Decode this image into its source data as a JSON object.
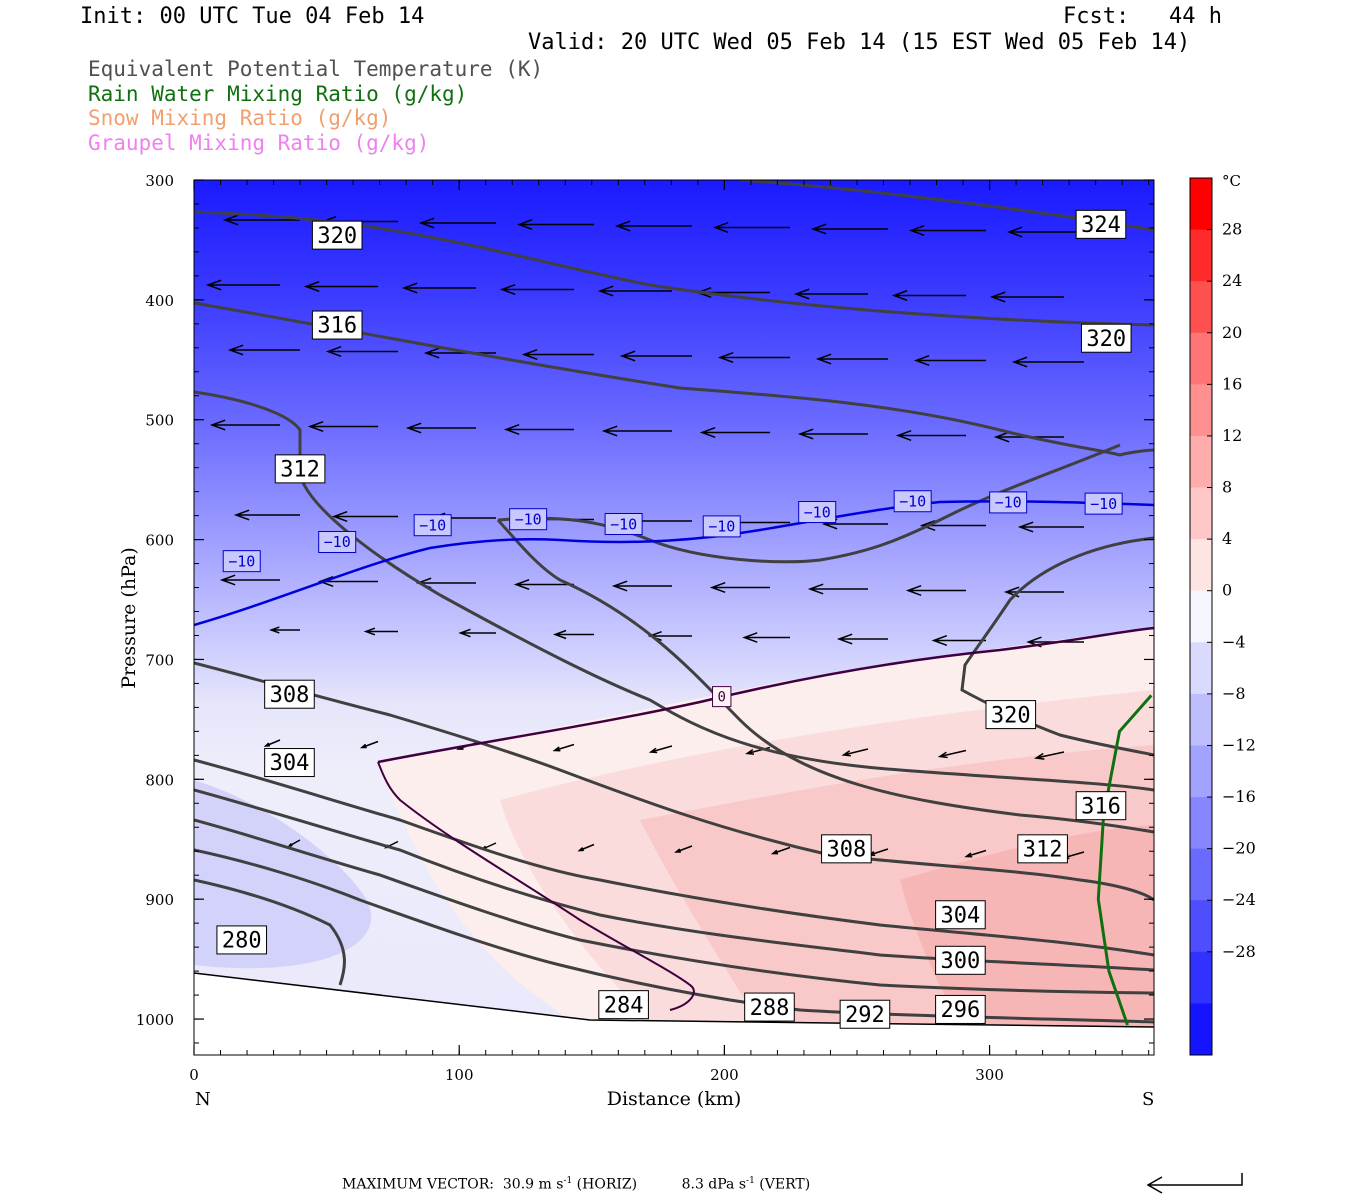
{
  "header": {
    "init": "Init: 00 UTC Tue 04 Feb 14",
    "fcst": "Fcst:   44 h",
    "valid": "Valid: 20 UTC Wed 05 Feb 14 (15 EST Wed 05 Feb 14)"
  },
  "legend": [
    {
      "label": "Equivalent Potential Temperature (K)",
      "color": "#505050"
    },
    {
      "label": "Rain Water Mixing Ratio (g/kg)",
      "color": "#107010"
    },
    {
      "label": "Snow Mixing Ratio (g/kg)",
      "color": "#f0a070"
    },
    {
      "label": "Graupel Mixing Ratio (g/kg)",
      "color": "#f080f0"
    }
  ],
  "chart_data": {
    "type": "heatmap",
    "title": "",
    "xlabel": "Distance (km)",
    "ylabel": "Pressure (hPa)",
    "xlim": [
      0,
      362
    ],
    "ylim": [
      1030,
      300
    ],
    "x_ticks": [
      "0",
      "100",
      "200",
      "300"
    ],
    "y_ticks": [
      "300",
      "400",
      "500",
      "600",
      "700",
      "800",
      "900",
      "1000"
    ],
    "x_end_labels": {
      "left": "N",
      "right": "S"
    },
    "colorbar": {
      "unit": "°C",
      "levels": [
        "28",
        "24",
        "20",
        "16",
        "12",
        "8",
        "4",
        "0",
        "−4",
        "−8",
        "−12",
        "−16",
        "−20",
        "−24",
        "−28"
      ]
    },
    "theta_e_labels": [
      {
        "text": "320",
        "x": 54,
        "p": 346
      },
      {
        "text": "324",
        "x": 342,
        "p": 337
      },
      {
        "text": "316",
        "x": 54,
        "p": 421
      },
      {
        "text": "320",
        "x": 344,
        "p": 432
      },
      {
        "text": "312",
        "x": 40,
        "p": 541
      },
      {
        "text": "308",
        "x": 36,
        "p": 729
      },
      {
        "text": "320",
        "x": 308,
        "p": 746
      },
      {
        "text": "304",
        "x": 36,
        "p": 786
      },
      {
        "text": "316",
        "x": 342,
        "p": 822
      },
      {
        "text": "308",
        "x": 246,
        "p": 858
      },
      {
        "text": "312",
        "x": 320,
        "p": 858
      },
      {
        "text": "304",
        "x": 289,
        "p": 913
      },
      {
        "text": "280",
        "x": 18,
        "p": 934
      },
      {
        "text": "300",
        "x": 289,
        "p": 951
      },
      {
        "text": "284",
        "x": 162,
        "p": 988
      },
      {
        "text": "288",
        "x": 217,
        "p": 990
      },
      {
        "text": "296",
        "x": 289,
        "p": 992
      },
      {
        "text": "292",
        "x": 253,
        "p": 996
      }
    ],
    "temperature_labels": [
      {
        "text": "−10",
        "x": 18,
        "p": 618
      },
      {
        "text": "−10",
        "x": 54,
        "p": 602
      },
      {
        "text": "−10",
        "x": 90,
        "p": 588
      },
      {
        "text": "−10",
        "x": 126,
        "p": 583
      },
      {
        "text": "−10",
        "x": 162,
        "p": 587
      },
      {
        "text": "−10",
        "x": 199,
        "p": 589
      },
      {
        "text": "−10",
        "x": 235,
        "p": 577
      },
      {
        "text": "−10",
        "x": 271,
        "p": 568
      },
      {
        "text": "−10",
        "x": 307,
        "p": 569
      },
      {
        "text": "−10",
        "x": 343,
        "p": 570
      },
      {
        "text": "0",
        "x": 199,
        "p": 731
      }
    ],
    "series": [
      {
        "name": "Rain Water Mixing Ratio (g/kg)",
        "x": [
          361,
          349,
          343,
          341,
          345,
          352
        ],
        "p": [
          730,
          760,
          830,
          900,
          960,
          1005
        ]
      }
    ],
    "footer": {
      "max_label": "MAXIMUM VECTOR:",
      "horiz_value": "30.9 m s",
      "horiz_suffix": " (HORIZ)",
      "vert_value": "8.3 dPa s",
      "vert_suffix": " (VERT)",
      "exponent": "-1"
    }
  }
}
